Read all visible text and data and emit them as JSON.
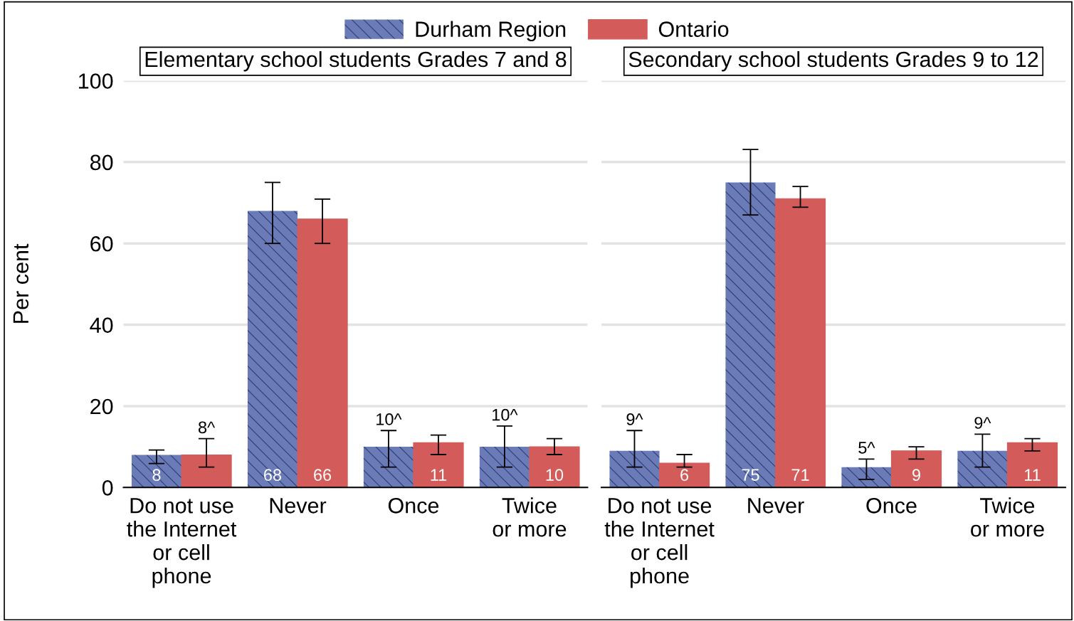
{
  "chart_data": [
    {
      "type": "bar",
      "title": "Elementary school students Grades 7 and 8",
      "ylabel": "Per cent",
      "categories": [
        "Do not use\nthe Internet\nor cell\nphone",
        "Never",
        "Once",
        "Twice\nor more"
      ],
      "series": [
        {
          "name": "Durham Region",
          "color": "#6a7bb8",
          "values": [
            8,
            68,
            10,
            10
          ],
          "errors": [
            [
              5.9,
              9.2
            ],
            [
              60,
              75
            ],
            [
              5,
              14
            ],
            [
              5,
              15.1
            ]
          ],
          "value_labels": [
            "8",
            "68",
            "10^",
            "10^"
          ]
        },
        {
          "name": "Ontario",
          "color": "#d35c5b",
          "values": [
            8,
            66,
            11,
            10
          ],
          "errors": [
            [
              5,
              12
            ],
            [
              60,
              70.9
            ],
            [
              8.1,
              12.9
            ],
            [
              8.1,
              12
            ]
          ],
          "value_labels": [
            "8^",
            "66",
            "11",
            "10"
          ]
        }
      ],
      "ylim": [
        0,
        100
      ],
      "yticks": [
        0,
        20,
        40,
        60,
        80,
        100
      ],
      "grid": "y",
      "legend": "top"
    },
    {
      "type": "bar",
      "title": "Secondary school students Grades 9 to 12",
      "categories": [
        "Do not use\nthe Internet\nor cell\nphone",
        "Never",
        "Once",
        "Twice\nor more"
      ],
      "series": [
        {
          "color": "#6a7bb8",
          "values": [
            9,
            75,
            5,
            9
          ],
          "errors": [
            [
              5,
              14
            ],
            [
              67,
              83.1
            ],
            [
              2,
              7
            ],
            [
              5,
              13.1
            ]
          ],
          "value_labels": [
            "9^",
            "75",
            "5^",
            "9^"
          ]
        },
        {
          "color": "#d35c5b",
          "values": [
            6,
            71,
            9,
            11
          ],
          "errors": [
            [
              5,
              8.1
            ],
            [
              68.9,
              74
            ],
            [
              7,
              10
            ],
            [
              9,
              12
            ]
          ],
          "value_labels": [
            "6",
            "71",
            "9",
            "11"
          ]
        }
      ],
      "ylim": [
        0,
        100
      ],
      "yticks": [
        0,
        20,
        40,
        60,
        80,
        100
      ],
      "grid": "y",
      "tick_labels": "x"
    }
  ]
}
